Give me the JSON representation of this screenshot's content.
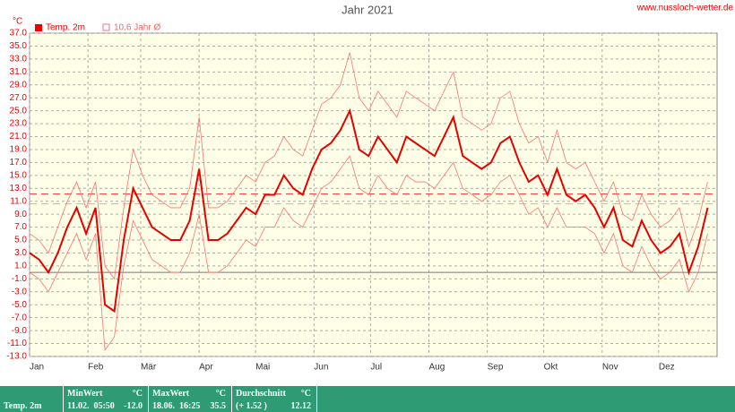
{
  "chart_data": {
    "type": "line",
    "title": "Jahr 2021",
    "source": "www.nussloch-wetter.de",
    "y_unit": "°C",
    "legend_extra": "10.6 Jahr Ø",
    "x": [
      0,
      5,
      10,
      15,
      20,
      25,
      30,
      35,
      40,
      45,
      50,
      55,
      60,
      65,
      70,
      75,
      80,
      85,
      90,
      95,
      100,
      105,
      110,
      115,
      120,
      125,
      130,
      135,
      140,
      145,
      150,
      155,
      160,
      165,
      170,
      175,
      180,
      185,
      190,
      195,
      200,
      205,
      210,
      215,
      220,
      225,
      230,
      235,
      240,
      245,
      250,
      255,
      260,
      265,
      270,
      275,
      280,
      285,
      290,
      295,
      300,
      305,
      310,
      315,
      320,
      325,
      330,
      335,
      340,
      345,
      350,
      355,
      360
    ],
    "xlim": [
      0,
      365
    ],
    "xticks": [
      {
        "value": 0,
        "label": "Jan"
      },
      {
        "value": 31,
        "label": "Feb"
      },
      {
        "value": 59,
        "label": "Mär"
      },
      {
        "value": 90,
        "label": "Apr"
      },
      {
        "value": 120,
        "label": "Mai"
      },
      {
        "value": 151,
        "label": "Jun"
      },
      {
        "value": 181,
        "label": "Jul"
      },
      {
        "value": 212,
        "label": "Aug"
      },
      {
        "value": 243,
        "label": "Sep"
      },
      {
        "value": 273,
        "label": "Okt"
      },
      {
        "value": 304,
        "label": "Nov"
      },
      {
        "value": 334,
        "label": "Dez"
      }
    ],
    "ylim": [
      -13,
      37
    ],
    "yticks": [
      {
        "value": 37,
        "label": "37.0"
      },
      {
        "value": 35,
        "label": "35.0"
      },
      {
        "value": 33,
        "label": "33.0"
      },
      {
        "value": 31,
        "label": "31.0"
      },
      {
        "value": 29,
        "label": "29.0"
      },
      {
        "value": 27,
        "label": "27.0"
      },
      {
        "value": 25,
        "label": "25.0"
      },
      {
        "value": 23,
        "label": "23.0"
      },
      {
        "value": 21,
        "label": "21.0"
      },
      {
        "value": 19,
        "label": "19.0"
      },
      {
        "value": 17,
        "label": "17.0"
      },
      {
        "value": 15,
        "label": "15.0"
      },
      {
        "value": 13,
        "label": "13.0"
      },
      {
        "value": 11,
        "label": "11.0"
      },
      {
        "value": 9,
        "label": "9.0"
      },
      {
        "value": 7,
        "label": "7.0"
      },
      {
        "value": 5,
        "label": "5.0"
      },
      {
        "value": 3,
        "label": "3.0"
      },
      {
        "value": 1,
        "label": "1.0"
      },
      {
        "value": -1,
        "label": "-1.0"
      },
      {
        "value": -3,
        "label": "-3.0"
      },
      {
        "value": -5,
        "label": "-5.0"
      },
      {
        "value": -7,
        "label": "-7.0"
      },
      {
        "value": -9,
        "label": "-9.0"
      },
      {
        "value": -11,
        "label": "-11.0"
      },
      {
        "value": -13,
        "label": "-13.0"
      }
    ],
    "grid": true,
    "reference_lines": [
      10.6,
      12.12
    ],
    "series": [
      {
        "color": "#ff7070",
        "values": [
          6,
          5,
          3,
          7,
          11,
          14,
          10,
          14,
          1,
          -1,
          10,
          19,
          15,
          12,
          11,
          10,
          10,
          13,
          24,
          10,
          10,
          11,
          13,
          15,
          14,
          17,
          18,
          21,
          19,
          18,
          22,
          26,
          27,
          29,
          34,
          27,
          25,
          28,
          26,
          24,
          28,
          27,
          26,
          25,
          28,
          31,
          24,
          23,
          22,
          23,
          27,
          28,
          23,
          20,
          21,
          17,
          22,
          17,
          16,
          17,
          14,
          11,
          14,
          9,
          8,
          12,
          9,
          7,
          8,
          10,
          4,
          8,
          14
        ]
      },
      {
        "name": "Temp. 2m",
        "color": "#e60000",
        "values": [
          3,
          2,
          0,
          3,
          7,
          10,
          6,
          10,
          -5,
          -6,
          5,
          13,
          10,
          7,
          6,
          5,
          5,
          8,
          16,
          5,
          5,
          6,
          8,
          10,
          9,
          12,
          12,
          15,
          13,
          12,
          16,
          19,
          20,
          22,
          25,
          19,
          18,
          21,
          19,
          17,
          21,
          20,
          19,
          18,
          21,
          24,
          18,
          17,
          16,
          17,
          20,
          21,
          17,
          14,
          15,
          12,
          16,
          12,
          11,
          12,
          10,
          7,
          10,
          5,
          4,
          8,
          5,
          3,
          4,
          6,
          0,
          4,
          10
        ]
      },
      {
        "color": "#ff7070",
        "values": [
          0,
          -1,
          -3,
          0,
          3,
          6,
          2,
          6,
          -12,
          -10,
          1,
          8,
          5,
          2,
          1,
          0,
          0,
          3,
          9,
          0,
          0,
          1,
          3,
          5,
          4,
          7,
          7,
          10,
          8,
          7,
          10,
          13,
          14,
          16,
          18,
          13,
          12,
          15,
          13,
          12,
          15,
          14,
          14,
          13,
          15,
          17,
          13,
          12,
          11,
          12,
          14,
          15,
          12,
          9,
          10,
          7,
          10,
          7,
          7,
          7,
          6,
          3,
          6,
          1,
          0,
          4,
          1,
          -1,
          0,
          2,
          -3,
          0,
          6
        ]
      }
    ]
  },
  "table": {
    "columns": [
      {
        "title": "MinWert",
        "unit": "°C"
      },
      {
        "title": "MaxWert",
        "unit": "°C"
      },
      {
        "title": "Durchschnitt",
        "unit": "°C"
      }
    ],
    "row": {
      "label": "Temp. 2m",
      "cells": [
        [
          "11.02.  05:50",
          "-12.0"
        ],
        [
          "18.06.  16:25",
          "35.5"
        ],
        [
          "(+ 1.52 )",
          "12.12"
        ]
      ]
    }
  }
}
